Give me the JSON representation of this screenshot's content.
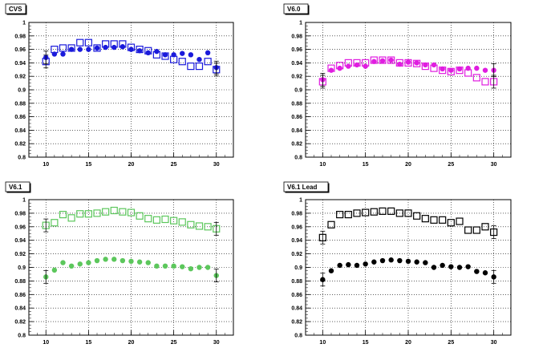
{
  "chart_data": [
    {
      "type": "scatter",
      "title": "CVS",
      "xlim": [
        8,
        32
      ],
      "ylim": [
        0.8,
        1.0
      ],
      "x_ticks": [
        10,
        15,
        20,
        25,
        30
      ],
      "y_ticks": [
        0.8,
        0.82,
        0.84,
        0.86,
        0.88,
        0.9,
        0.92,
        0.94,
        0.96,
        0.98,
        1
      ],
      "grid": true,
      "color": "#1a1adb",
      "series": [
        {
          "marker": "open-square",
          "x": [
            10,
            11,
            12,
            13,
            14,
            15,
            16,
            17,
            18,
            19,
            20,
            21,
            22,
            23,
            24,
            25,
            26,
            27,
            28,
            29,
            30
          ],
          "y": [
            0.942,
            0.96,
            0.962,
            0.962,
            0.97,
            0.97,
            0.962,
            0.968,
            0.968,
            0.968,
            0.963,
            0.96,
            0.958,
            0.952,
            0.95,
            0.945,
            0.942,
            0.935,
            0.935,
            0.942,
            0.93
          ]
        },
        {
          "marker": "filled-circle",
          "x": [
            10,
            11,
            12,
            13,
            14,
            15,
            16,
            17,
            18,
            19,
            20,
            21,
            22,
            23,
            24,
            25,
            26,
            27,
            28,
            29,
            30
          ],
          "y": [
            0.948,
            0.953,
            0.953,
            0.96,
            0.96,
            0.96,
            0.962,
            0.963,
            0.963,
            0.964,
            0.96,
            0.958,
            0.955,
            0.957,
            0.952,
            0.952,
            0.954,
            0.952,
            0.945,
            0.955,
            0.933
          ]
        }
      ]
    },
    {
      "type": "scatter",
      "title": "V6.0",
      "xlim": [
        8,
        32
      ],
      "ylim": [
        0.8,
        1.0
      ],
      "x_ticks": [
        10,
        15,
        20,
        25,
        30
      ],
      "y_ticks": [
        0.8,
        0.82,
        0.84,
        0.86,
        0.88,
        0.9,
        0.92,
        0.94,
        0.96,
        0.98,
        1
      ],
      "grid": true,
      "color": "#e01de0",
      "series": [
        {
          "marker": "open-square",
          "x": [
            10,
            11,
            12,
            13,
            14,
            15,
            16,
            17,
            18,
            19,
            20,
            21,
            22,
            23,
            24,
            25,
            26,
            27,
            28,
            29,
            30
          ],
          "y": [
            0.912,
            0.932,
            0.936,
            0.94,
            0.94,
            0.94,
            0.944,
            0.944,
            0.944,
            0.94,
            0.94,
            0.939,
            0.935,
            0.932,
            0.929,
            0.927,
            0.929,
            0.925,
            0.918,
            0.912,
            0.912
          ]
        },
        {
          "marker": "filled-circle",
          "x": [
            10,
            11,
            12,
            13,
            14,
            15,
            16,
            17,
            18,
            19,
            20,
            21,
            22,
            23,
            24,
            25,
            26,
            27,
            28,
            29,
            30
          ],
          "y": [
            0.915,
            0.929,
            0.932,
            0.935,
            0.937,
            0.935,
            0.942,
            0.943,
            0.944,
            0.938,
            0.941,
            0.94,
            0.937,
            0.937,
            0.931,
            0.929,
            0.931,
            0.932,
            0.932,
            0.929,
            0.929
          ]
        }
      ]
    },
    {
      "type": "scatter",
      "title": "V6.1",
      "xlim": [
        8,
        32
      ],
      "ylim": [
        0.8,
        1.0
      ],
      "x_ticks": [
        10,
        15,
        20,
        25,
        30
      ],
      "y_ticks": [
        0.8,
        0.82,
        0.84,
        0.86,
        0.88,
        0.9,
        0.92,
        0.94,
        0.96,
        0.98,
        1
      ],
      "grid": true,
      "color": "#5cc75c",
      "series": [
        {
          "marker": "open-square",
          "x": [
            10,
            11,
            12,
            13,
            14,
            15,
            16,
            17,
            18,
            19,
            20,
            21,
            22,
            23,
            24,
            25,
            26,
            27,
            28,
            29,
            30
          ],
          "y": [
            0.962,
            0.966,
            0.978,
            0.973,
            0.979,
            0.979,
            0.98,
            0.982,
            0.984,
            0.982,
            0.981,
            0.976,
            0.972,
            0.97,
            0.971,
            0.969,
            0.967,
            0.963,
            0.961,
            0.96,
            0.957
          ]
        },
        {
          "marker": "filled-circle",
          "x": [
            10,
            11,
            12,
            13,
            14,
            15,
            16,
            17,
            18,
            19,
            20,
            21,
            22,
            23,
            24,
            25,
            26,
            27,
            28,
            29,
            30
          ],
          "y": [
            0.886,
            0.896,
            0.907,
            0.902,
            0.905,
            0.907,
            0.91,
            0.912,
            0.912,
            0.91,
            0.909,
            0.908,
            0.907,
            0.902,
            0.902,
            0.902,
            0.901,
            0.898,
            0.9,
            0.9,
            0.888
          ]
        }
      ]
    },
    {
      "type": "scatter",
      "title": "V6.1 Lead",
      "xlim": [
        8,
        32
      ],
      "ylim": [
        0.8,
        1.0
      ],
      "x_ticks": [
        10,
        15,
        20,
        25,
        30
      ],
      "y_ticks": [
        0.8,
        0.82,
        0.84,
        0.86,
        0.88,
        0.9,
        0.92,
        0.94,
        0.96,
        0.98,
        1
      ],
      "grid": true,
      "color": "#000000",
      "series": [
        {
          "marker": "open-square",
          "x": [
            10,
            11,
            12,
            13,
            14,
            15,
            16,
            17,
            18,
            19,
            20,
            21,
            22,
            23,
            24,
            25,
            26,
            27,
            28,
            29,
            30
          ],
          "y": [
            0.944,
            0.963,
            0.978,
            0.978,
            0.98,
            0.981,
            0.982,
            0.983,
            0.983,
            0.98,
            0.98,
            0.976,
            0.972,
            0.97,
            0.97,
            0.966,
            0.968,
            0.955,
            0.955,
            0.96,
            0.952
          ]
        },
        {
          "marker": "filled-circle",
          "x": [
            10,
            11,
            12,
            13,
            14,
            15,
            16,
            17,
            18,
            19,
            20,
            21,
            22,
            23,
            24,
            25,
            26,
            27,
            28,
            29,
            30
          ],
          "y": [
            0.882,
            0.895,
            0.903,
            0.904,
            0.903,
            0.905,
            0.908,
            0.91,
            0.911,
            0.91,
            0.909,
            0.908,
            0.907,
            0.9,
            0.903,
            0.901,
            0.9,
            0.901,
            0.894,
            0.892,
            0.886
          ]
        }
      ]
    }
  ]
}
